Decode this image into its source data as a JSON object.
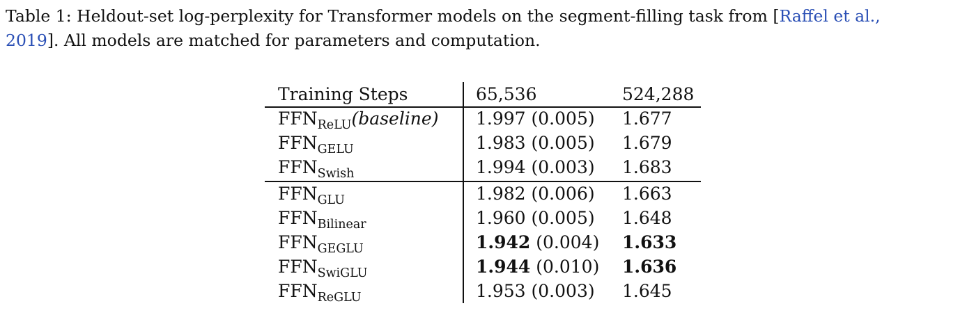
{
  "caption": {
    "line1": "Table 1:  Heldout-set log-perplexity for Transformer models on the segment-filling task from [",
    "cite_part1": "Raffel et al.,",
    "cite_part2": "2019",
    "line2_tail": "].  All models are matched for parameters and computation."
  },
  "table": {
    "headers": [
      "Training Steps",
      "65,536",
      "524,288"
    ],
    "rows": [
      {
        "base": "FFN",
        "sub": "ReLU",
        "suffix": "(baseline)",
        "mean": "1.997",
        "std": " (0.005)",
        "final": "1.677",
        "bold": false
      },
      {
        "base": "FFN",
        "sub": "GELU",
        "suffix": "",
        "mean": "1.983",
        "std": " (0.005)",
        "final": "1.679",
        "bold": false
      },
      {
        "base": "FFN",
        "sub": "Swish",
        "suffix": "",
        "mean": "1.994",
        "std": " (0.003)",
        "final": "1.683",
        "bold": false
      },
      {
        "base": "FFN",
        "sub": "GLU",
        "suffix": "",
        "mean": "1.982",
        "std": " (0.006)",
        "final": "1.663",
        "bold": false
      },
      {
        "base": "FFN",
        "sub": "Bilinear",
        "suffix": "",
        "mean": "1.960",
        "std": " (0.005)",
        "final": "1.648",
        "bold": false
      },
      {
        "base": "FFN",
        "sub": "GEGLU",
        "suffix": "",
        "mean": "1.942",
        "std": " (0.004)",
        "final": "1.633",
        "bold": true
      },
      {
        "base": "FFN",
        "sub": "SwiGLU",
        "suffix": "",
        "mean": "1.944",
        "std": " (0.010)",
        "final": "1.636",
        "bold": true
      },
      {
        "base": "FFN",
        "sub": "ReGLU",
        "suffix": "",
        "mean": "1.953",
        "std": " (0.003)",
        "final": "1.645",
        "bold": false
      }
    ]
  }
}
